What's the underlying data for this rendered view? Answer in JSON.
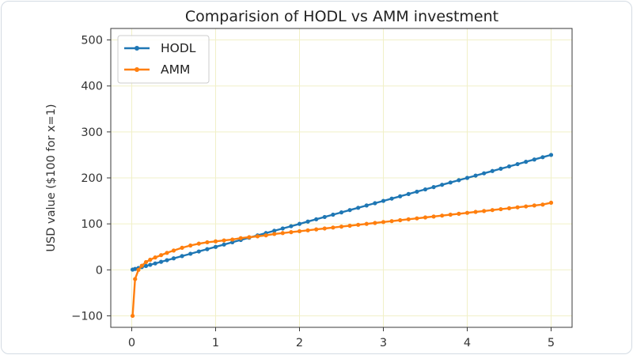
{
  "chart_data": {
    "type": "line",
    "title": "Comparision of HODL vs AMM investment",
    "xlabel": "",
    "ylabel": "USD value ($100 for x=1)",
    "xlim": [
      -0.25,
      5.25
    ],
    "ylim": [
      -125,
      525
    ],
    "xticks": [
      0,
      1,
      2,
      3,
      4,
      5
    ],
    "xtick_labels": [
      "0",
      "1",
      "2",
      "3",
      "4",
      "5"
    ],
    "yticks": [
      -100,
      0,
      100,
      200,
      300,
      400,
      500
    ],
    "ytick_labels": [
      "−100",
      "0",
      "100",
      "200",
      "300",
      "400",
      "500"
    ],
    "grid": true,
    "legend_position": "upper-left",
    "x": [
      0.01,
      0.04,
      0.08,
      0.12,
      0.17,
      0.22,
      0.28,
      0.35,
      0.42,
      0.5,
      0.6,
      0.7,
      0.8,
      0.9,
      1.0,
      1.1,
      1.2,
      1.3,
      1.4,
      1.5,
      1.6,
      1.7,
      1.8,
      1.9,
      2.0,
      2.1,
      2.2,
      2.3,
      2.4,
      2.5,
      2.6,
      2.7,
      2.8,
      2.9,
      3.0,
      3.1,
      3.2,
      3.3,
      3.4,
      3.5,
      3.6,
      3.7,
      3.8,
      3.9,
      4.0,
      4.1,
      4.2,
      4.3,
      4.4,
      4.5,
      4.6,
      4.7,
      4.8,
      4.9,
      5.0
    ],
    "series": [
      {
        "name": "HODL",
        "color": "#1f77b4",
        "values": [
          0.5,
          2,
          4,
          6,
          8.5,
          11,
          14,
          17.5,
          21,
          25,
          30,
          35,
          40,
          45,
          50,
          55,
          60,
          65,
          70,
          75,
          80,
          85,
          90,
          95,
          100,
          105,
          110,
          115,
          120,
          125,
          130,
          135,
          140,
          145,
          150,
          155,
          160,
          165,
          170,
          175,
          180,
          185,
          190,
          195,
          200,
          205,
          210,
          215,
          220,
          225,
          230,
          235,
          240,
          245,
          250
        ]
      },
      {
        "name": "AMM",
        "color": "#ff7f0e",
        "values": [
          -100,
          -20,
          0,
          9,
          17,
          22,
          27,
          32,
          37,
          42,
          48,
          53,
          57,
          60,
          62,
          64,
          66,
          69,
          71,
          73,
          75,
          78,
          80,
          82,
          84,
          86,
          88,
          90,
          92,
          94,
          96,
          98,
          100,
          102,
          104,
          106,
          108,
          110,
          112,
          114,
          116,
          118,
          120,
          122,
          124,
          126,
          128,
          130,
          132,
          134,
          136,
          138,
          140,
          142,
          146
        ]
      }
    ]
  }
}
